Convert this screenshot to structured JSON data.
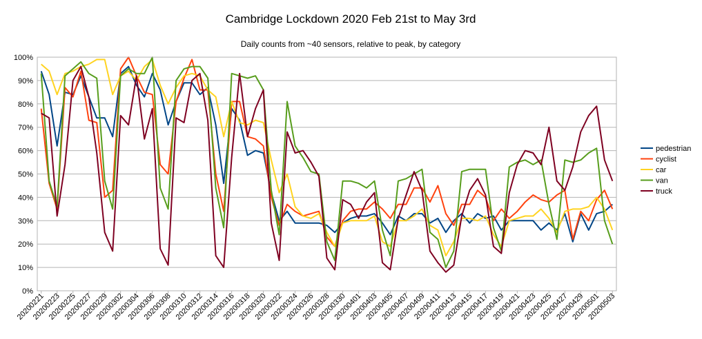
{
  "chart_data": {
    "type": "line",
    "title": "Cambridge Lockdown 2020 Feb 21st to May 3rd",
    "subtitle": "Daily counts from ~40 sensors, relative to peak, by category",
    "xlabel": "",
    "ylabel": "",
    "ylim": [
      0,
      1
    ],
    "y_ticks": [
      "0%",
      "10%",
      "20%",
      "30%",
      "40%",
      "50%",
      "60%",
      "70%",
      "80%",
      "90%",
      "100%"
    ],
    "grid": true,
    "legend_position": "right",
    "x": [
      "20200221",
      "20200222",
      "20200223",
      "20200224",
      "20200225",
      "20200226",
      "20200227",
      "20200228",
      "20200229",
      "20200301",
      "20200302",
      "20200303",
      "20200304",
      "20200305",
      "20200306",
      "20200307",
      "20200308",
      "20200309",
      "20200310",
      "20200311",
      "20200312",
      "20200313",
      "20200314",
      "20200315",
      "20200316",
      "20200317",
      "20200318",
      "20200319",
      "20200320",
      "20200321",
      "20200322",
      "20200323",
      "20200324",
      "20200325",
      "20200326",
      "20200327",
      "20200328",
      "20200329",
      "20200330",
      "20200331",
      "20200401",
      "20200402",
      "20200403",
      "20200404",
      "20200405",
      "20200406",
      "20200407",
      "20200408",
      "20200409",
      "20200410",
      "20200411",
      "20200412",
      "20200413",
      "20200414",
      "20200415",
      "20200416",
      "20200417",
      "20200418",
      "20200419",
      "20200420",
      "20200421",
      "20200422",
      "20200423",
      "20200424",
      "20200425",
      "20200426",
      "20200427",
      "20200428",
      "20200429",
      "20200430",
      "20200501",
      "20200502",
      "20200503"
    ],
    "x_tick_labels": [
      "20200221",
      "20200223",
      "20200225",
      "20200227",
      "20200229",
      "20200302",
      "20200304",
      "20200306",
      "20200308",
      "20200310",
      "20200312",
      "20200314",
      "20200316",
      "20200318",
      "20200320",
      "20200322",
      "20200324",
      "20200326",
      "20200328",
      "20200330",
      "20200401",
      "20200403",
      "20200405",
      "20200407",
      "20200409",
      "20200411",
      "20200413",
      "20200415",
      "20200417",
      "20200419",
      "20200421",
      "20200423",
      "20200425",
      "20200427",
      "20200429",
      "20200501",
      "20200503"
    ],
    "series": [
      {
        "name": "pedestrian",
        "color": "#004586",
        "values": [
          0.94,
          0.84,
          0.62,
          0.85,
          0.84,
          0.92,
          0.83,
          0.74,
          0.74,
          0.66,
          0.93,
          0.96,
          0.88,
          0.83,
          0.93,
          0.86,
          0.71,
          0.81,
          0.89,
          0.89,
          0.84,
          0.87,
          0.71,
          0.46,
          0.78,
          0.73,
          0.58,
          0.6,
          0.59,
          0.42,
          0.3,
          0.34,
          0.29,
          0.29,
          0.29,
          0.29,
          0.28,
          0.25,
          0.29,
          0.31,
          0.32,
          0.32,
          0.33,
          0.29,
          0.24,
          0.32,
          0.3,
          0.33,
          0.33,
          0.29,
          0.31,
          0.25,
          0.3,
          0.33,
          0.29,
          0.33,
          0.31,
          0.32,
          0.26,
          0.3,
          0.3,
          0.3,
          0.3,
          0.26,
          0.29,
          0.26,
          0.33,
          0.21,
          0.33,
          0.26,
          0.33,
          0.34,
          0.37
        ]
      },
      {
        "name": "cyclist",
        "color": "#ff420e",
        "values": [
          0.78,
          0.46,
          0.35,
          0.87,
          0.83,
          0.94,
          0.73,
          0.72,
          0.4,
          0.43,
          0.95,
          1.0,
          0.92,
          0.85,
          0.84,
          0.54,
          0.5,
          0.81,
          0.91,
          0.99,
          0.86,
          0.86,
          0.5,
          0.34,
          0.81,
          0.81,
          0.66,
          0.65,
          0.62,
          0.4,
          0.28,
          0.37,
          0.34,
          0.32,
          0.33,
          0.34,
          0.23,
          0.19,
          0.3,
          0.34,
          0.35,
          0.35,
          0.38,
          0.35,
          0.31,
          0.37,
          0.37,
          0.44,
          0.44,
          0.38,
          0.45,
          0.33,
          0.28,
          0.37,
          0.37,
          0.43,
          0.4,
          0.3,
          0.35,
          0.31,
          0.34,
          0.38,
          0.41,
          0.39,
          0.38,
          0.41,
          0.43,
          0.22,
          0.34,
          0.3,
          0.39,
          0.43,
          0.35
        ]
      },
      {
        "name": "car",
        "color": "#ffd320",
        "values": [
          0.97,
          0.94,
          0.84,
          0.93,
          0.94,
          0.96,
          0.97,
          0.99,
          0.99,
          0.84,
          0.92,
          0.94,
          0.9,
          0.96,
          0.99,
          0.88,
          0.8,
          0.87,
          0.92,
          0.93,
          0.92,
          0.86,
          0.83,
          0.66,
          0.81,
          0.72,
          0.71,
          0.73,
          0.72,
          0.56,
          0.42,
          0.5,
          0.36,
          0.32,
          0.31,
          0.33,
          0.25,
          0.19,
          0.29,
          0.3,
          0.3,
          0.3,
          0.32,
          0.21,
          0.19,
          0.3,
          0.3,
          0.32,
          0.35,
          0.28,
          0.26,
          0.15,
          0.21,
          0.31,
          0.31,
          0.3,
          0.32,
          0.24,
          0.19,
          0.3,
          0.31,
          0.32,
          0.32,
          0.35,
          0.31,
          0.25,
          0.34,
          0.35,
          0.35,
          0.36,
          0.4,
          0.35,
          0.26
        ]
      },
      {
        "name": "van",
        "color": "#579d1c",
        "values": [
          0.93,
          0.47,
          0.36,
          0.92,
          0.95,
          0.98,
          0.93,
          0.91,
          0.47,
          0.35,
          0.92,
          0.95,
          0.93,
          0.93,
          1.0,
          0.44,
          0.35,
          0.9,
          0.95,
          0.96,
          0.96,
          0.91,
          0.44,
          0.27,
          0.93,
          0.92,
          0.91,
          0.92,
          0.86,
          0.43,
          0.24,
          0.81,
          0.62,
          0.57,
          0.51,
          0.5,
          0.21,
          0.13,
          0.47,
          0.47,
          0.46,
          0.44,
          0.47,
          0.26,
          0.15,
          0.47,
          0.48,
          0.5,
          0.52,
          0.25,
          0.22,
          0.1,
          0.17,
          0.51,
          0.52,
          0.52,
          0.52,
          0.27,
          0.17,
          0.53,
          0.55,
          0.56,
          0.54,
          0.56,
          0.37,
          0.22,
          0.56,
          0.55,
          0.56,
          0.59,
          0.61,
          0.3,
          0.2
        ]
      },
      {
        "name": "truck",
        "color": "#7e0021",
        "values": [
          0.76,
          0.74,
          0.32,
          0.54,
          0.9,
          0.96,
          0.83,
          0.59,
          0.25,
          0.17,
          0.75,
          0.71,
          0.92,
          0.65,
          0.78,
          0.18,
          0.11,
          0.74,
          0.72,
          0.9,
          0.93,
          0.73,
          0.15,
          0.1,
          0.57,
          0.93,
          0.66,
          0.78,
          0.86,
          0.29,
          0.13,
          0.68,
          0.59,
          0.6,
          0.55,
          0.49,
          0.14,
          0.09,
          0.39,
          0.37,
          0.31,
          0.38,
          0.42,
          0.12,
          0.09,
          0.31,
          0.41,
          0.51,
          0.43,
          0.17,
          0.12,
          0.08,
          0.11,
          0.32,
          0.43,
          0.48,
          0.41,
          0.19,
          0.16,
          0.42,
          0.54,
          0.6,
          0.59,
          0.54,
          0.7,
          0.47,
          0.43,
          0.53,
          0.68,
          0.75,
          0.79,
          0.56,
          0.47
        ]
      }
    ]
  }
}
